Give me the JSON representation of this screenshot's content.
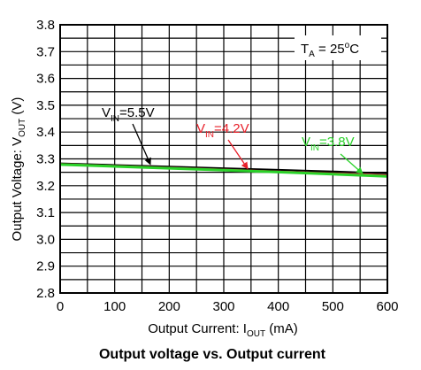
{
  "chart_data": {
    "type": "line",
    "title": "Output voltage vs. Output current",
    "xlabel": {
      "main": "Output Current: I",
      "sub": "OUT",
      "unit": " (mA)"
    },
    "ylabel": {
      "main": "Output Voltage: V",
      "sub": "OUT",
      "unit": " (V)"
    },
    "xlim": [
      0,
      600
    ],
    "ylim": [
      2.8,
      3.8
    ],
    "x_ticks": [
      "0",
      "100",
      "200",
      "300",
      "400",
      "500",
      "600"
    ],
    "y_ticks": [
      "2.8",
      "2.9",
      "3.0",
      "3.1",
      "3.2",
      "3.3",
      "3.4",
      "3.5",
      "3.6",
      "3.7",
      "3.8"
    ],
    "x_minor_step": 50,
    "y_minor_step": 0.05,
    "grid": true,
    "condition": {
      "main": "T",
      "sub": "A",
      "rest": " = 25",
      "sup": "o",
      "unit": "C"
    },
    "series": [
      {
        "name": "VIN=5.5V",
        "label_main": "V",
        "label_sub": "IN",
        "label_rest": "=5.5V",
        "color": "#000000",
        "x": [
          0,
          100,
          200,
          300,
          400,
          500,
          600
        ],
        "y": [
          3.283,
          3.277,
          3.271,
          3.265,
          3.259,
          3.253,
          3.246
        ]
      },
      {
        "name": "VIN=4.2V",
        "label_main": "V",
        "label_sub": "IN",
        "label_rest": "=4.2V",
        "color": "#e8202a",
        "x": [
          0,
          100,
          200,
          300,
          400,
          500,
          600
        ],
        "y": [
          3.281,
          3.274,
          3.267,
          3.26,
          3.253,
          3.246,
          3.239
        ]
      },
      {
        "name": "VIN=3.8V",
        "label_main": "V",
        "label_sub": "IN",
        "label_rest": "=3.8V",
        "color": "#2ad22a",
        "x": [
          0,
          100,
          200,
          300,
          400,
          500,
          600
        ],
        "y": [
          3.279,
          3.272,
          3.265,
          3.258,
          3.251,
          3.243,
          3.235
        ]
      }
    ]
  }
}
